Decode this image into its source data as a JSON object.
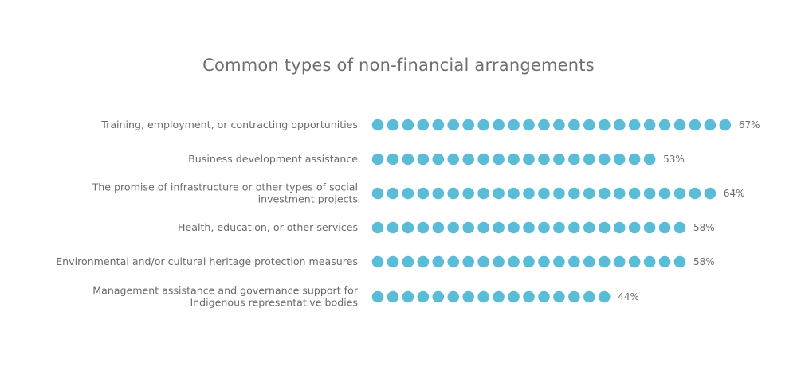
{
  "chart_data": {
    "type": "bar",
    "title": "Common types of non-financial arrangements",
    "unit": "%",
    "dot_color": "#5bbcd8",
    "text_color": "#6b6b6b",
    "categories": [
      [
        "Training, employment, or contracting opportunities"
      ],
      [
        "Business development assistance"
      ],
      [
        "The promise of infrastructure or other types of social",
        "investment projects"
      ],
      [
        "Health, education, or other services"
      ],
      [
        "Environmental and/or cultural heritage protection measures"
      ],
      [
        "Management assistance and governance support for",
        "Indigenous representative bodies"
      ]
    ],
    "values": [
      67,
      53,
      64,
      58,
      58,
      44
    ],
    "value_labels": [
      "67%",
      "53%",
      "64%",
      "58%",
      "58%",
      "44%"
    ],
    "dot_counts": [
      24,
      19,
      23,
      21,
      21,
      16
    ]
  }
}
